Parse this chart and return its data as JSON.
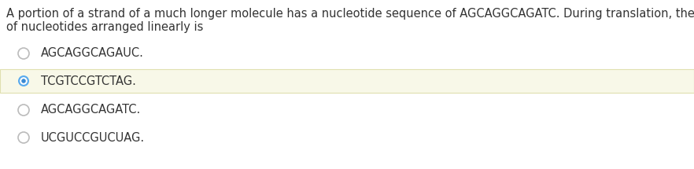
{
  "question_line1": "A portion of a strand of a much longer molecule has a nucleotide sequence of AGCAGGCAGATC. During translation, the tRNA sequence",
  "question_line2": "of nucleotides arranged linearly is",
  "options": [
    "AGCAGGCAGAUC.",
    "TCGTCCGTCTAG.",
    "AGCAGGCAGATC.",
    "UCGUCCGUCUAG."
  ],
  "selected_index": 1,
  "bg_color": "#ffffff",
  "highlight_color": "#f8f8e8",
  "highlight_border": "#e0e0b0",
  "radio_unselected_edge": "#bbbbbb",
  "radio_unselected_fill": "#ffffff",
  "radio_selected_outer": "#5aabee",
  "radio_selected_inner": "#3a8ad4",
  "text_color": "#333333",
  "option_font_size": 10.5,
  "question_font_size": 10.5,
  "fig_width": 8.82,
  "fig_height": 2.15,
  "dpi": 100
}
